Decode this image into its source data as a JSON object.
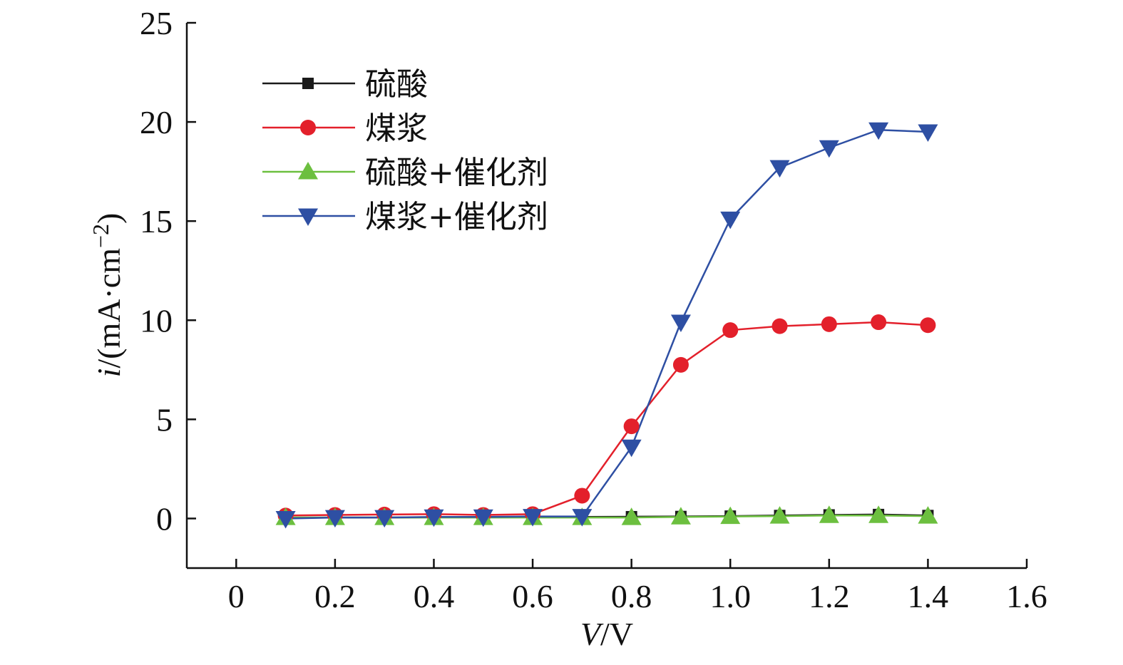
{
  "chart_data": {
    "type": "line",
    "xlabel_var": "V",
    "xlabel_unit": "/V",
    "ylabel_var": "i",
    "ylabel_unit": "/(mA·cm",
    "ylabel_sup": "−2",
    "ylabel_close": ")",
    "xlim": [
      -0.1,
      1.6
    ],
    "ylim": [
      -2.5,
      25
    ],
    "xticks": [
      0,
      0.2,
      0.4,
      0.6,
      0.8,
      1.0,
      1.2,
      1.4,
      1.6
    ],
    "xtick_labels": [
      "0",
      "0.2",
      "0.4",
      "0.6",
      "0.8",
      "1.0",
      "1.2",
      "1.4",
      "1.6"
    ],
    "yticks": [
      0,
      5,
      10,
      15,
      20,
      25
    ],
    "ytick_labels": [
      "0",
      "5",
      "10",
      "15",
      "20",
      "25"
    ],
    "x": [
      0.1,
      0.2,
      0.3,
      0.4,
      0.5,
      0.6,
      0.7,
      0.8,
      0.9,
      1.0,
      1.1,
      1.2,
      1.3,
      1.4
    ],
    "legend_position": "upper-left",
    "series": [
      {
        "name": "硫酸",
        "color": "#1a1a1a",
        "marker": "square",
        "values": [
          0.05,
          0.05,
          0.05,
          0.06,
          0.06,
          0.07,
          0.08,
          0.09,
          0.1,
          0.12,
          0.15,
          0.18,
          0.2,
          0.15
        ]
      },
      {
        "name": "煤浆",
        "color": "#e3202b",
        "marker": "circle",
        "values": [
          0.15,
          0.18,
          0.2,
          0.22,
          0.18,
          0.22,
          1.15,
          4.65,
          7.75,
          9.5,
          9.7,
          9.8,
          9.9,
          9.75
        ]
      },
      {
        "name": "硫酸+催化剂",
        "color": "#6cbf3f",
        "marker": "triangle-up",
        "values": [
          0.05,
          0.05,
          0.05,
          0.05,
          0.05,
          0.05,
          0.05,
          0.05,
          0.08,
          0.1,
          0.12,
          0.15,
          0.15,
          0.12
        ]
      },
      {
        "name": "煤浆+催化剂",
        "color": "#2e4fa3",
        "marker": "triangle-down",
        "values": [
          0.0,
          0.05,
          0.05,
          0.08,
          0.08,
          0.1,
          0.1,
          3.6,
          9.9,
          15.1,
          17.7,
          18.7,
          19.6,
          19.5
        ]
      }
    ]
  }
}
